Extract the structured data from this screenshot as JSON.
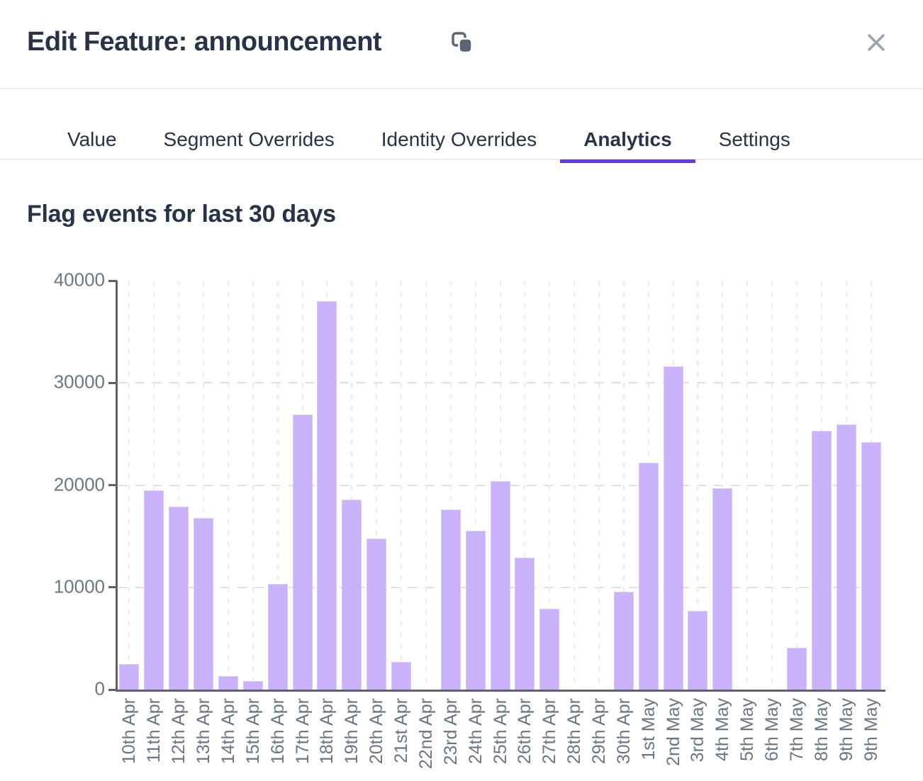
{
  "header": {
    "title": "Edit Feature: announcement",
    "copy_icon": "copy",
    "close_icon": "close"
  },
  "tabs": [
    {
      "label": "Value",
      "active": false
    },
    {
      "label": "Segment Overrides",
      "active": false
    },
    {
      "label": "Identity Overrides",
      "active": false
    },
    {
      "label": "Analytics",
      "active": true
    },
    {
      "label": "Settings",
      "active": false
    }
  ],
  "chart_data": {
    "type": "bar",
    "title": "Flag events for last 30 days",
    "categories": [
      "10th Apr",
      "11th Apr",
      "12th Apr",
      "13th Apr",
      "14th Apr",
      "15th Apr",
      "16th Apr",
      "17th Apr",
      "18th Apr",
      "19th Apr",
      "20th Apr",
      "21st Apr",
      "22nd Apr",
      "23rd Apr",
      "24th Apr",
      "25th Apr",
      "26th Apr",
      "27th Apr",
      "28th Apr",
      "29th Apr",
      "30th Apr",
      "1st May",
      "2nd May",
      "3rd May",
      "4th May",
      "5th May",
      "6th May",
      "7th May",
      "8th May",
      "9th May",
      "9th May"
    ],
    "values": [
      2500,
      19500,
      17900,
      16800,
      1300,
      800,
      10300,
      26900,
      38000,
      18600,
      14800,
      2700,
      0,
      17600,
      15500,
      20400,
      12900,
      7900,
      0,
      0,
      9600,
      22200,
      31600,
      7700,
      19700,
      0,
      0,
      4100,
      25300,
      25900,
      24200
    ],
    "xlabel": "",
    "ylabel": "",
    "ylim": [
      0,
      40000
    ],
    "yticks": [
      0,
      10000,
      20000,
      30000,
      40000
    ],
    "ytick_labels": [
      "0",
      "10000",
      "20000",
      "30000",
      "40000"
    ],
    "grid": "dashed-horizontal-and-vertical",
    "legend": "none"
  },
  "colors": {
    "accent_purple": "#6734ef",
    "bar_fill": "#c9b2f9",
    "bar_edge": "#d9c9fb",
    "dark_text": "#27334a",
    "muted_text": "#6b7684",
    "axis": "#5b636f",
    "icon_slate": "#5a6472",
    "icon_gray": "#9aa3ae"
  }
}
